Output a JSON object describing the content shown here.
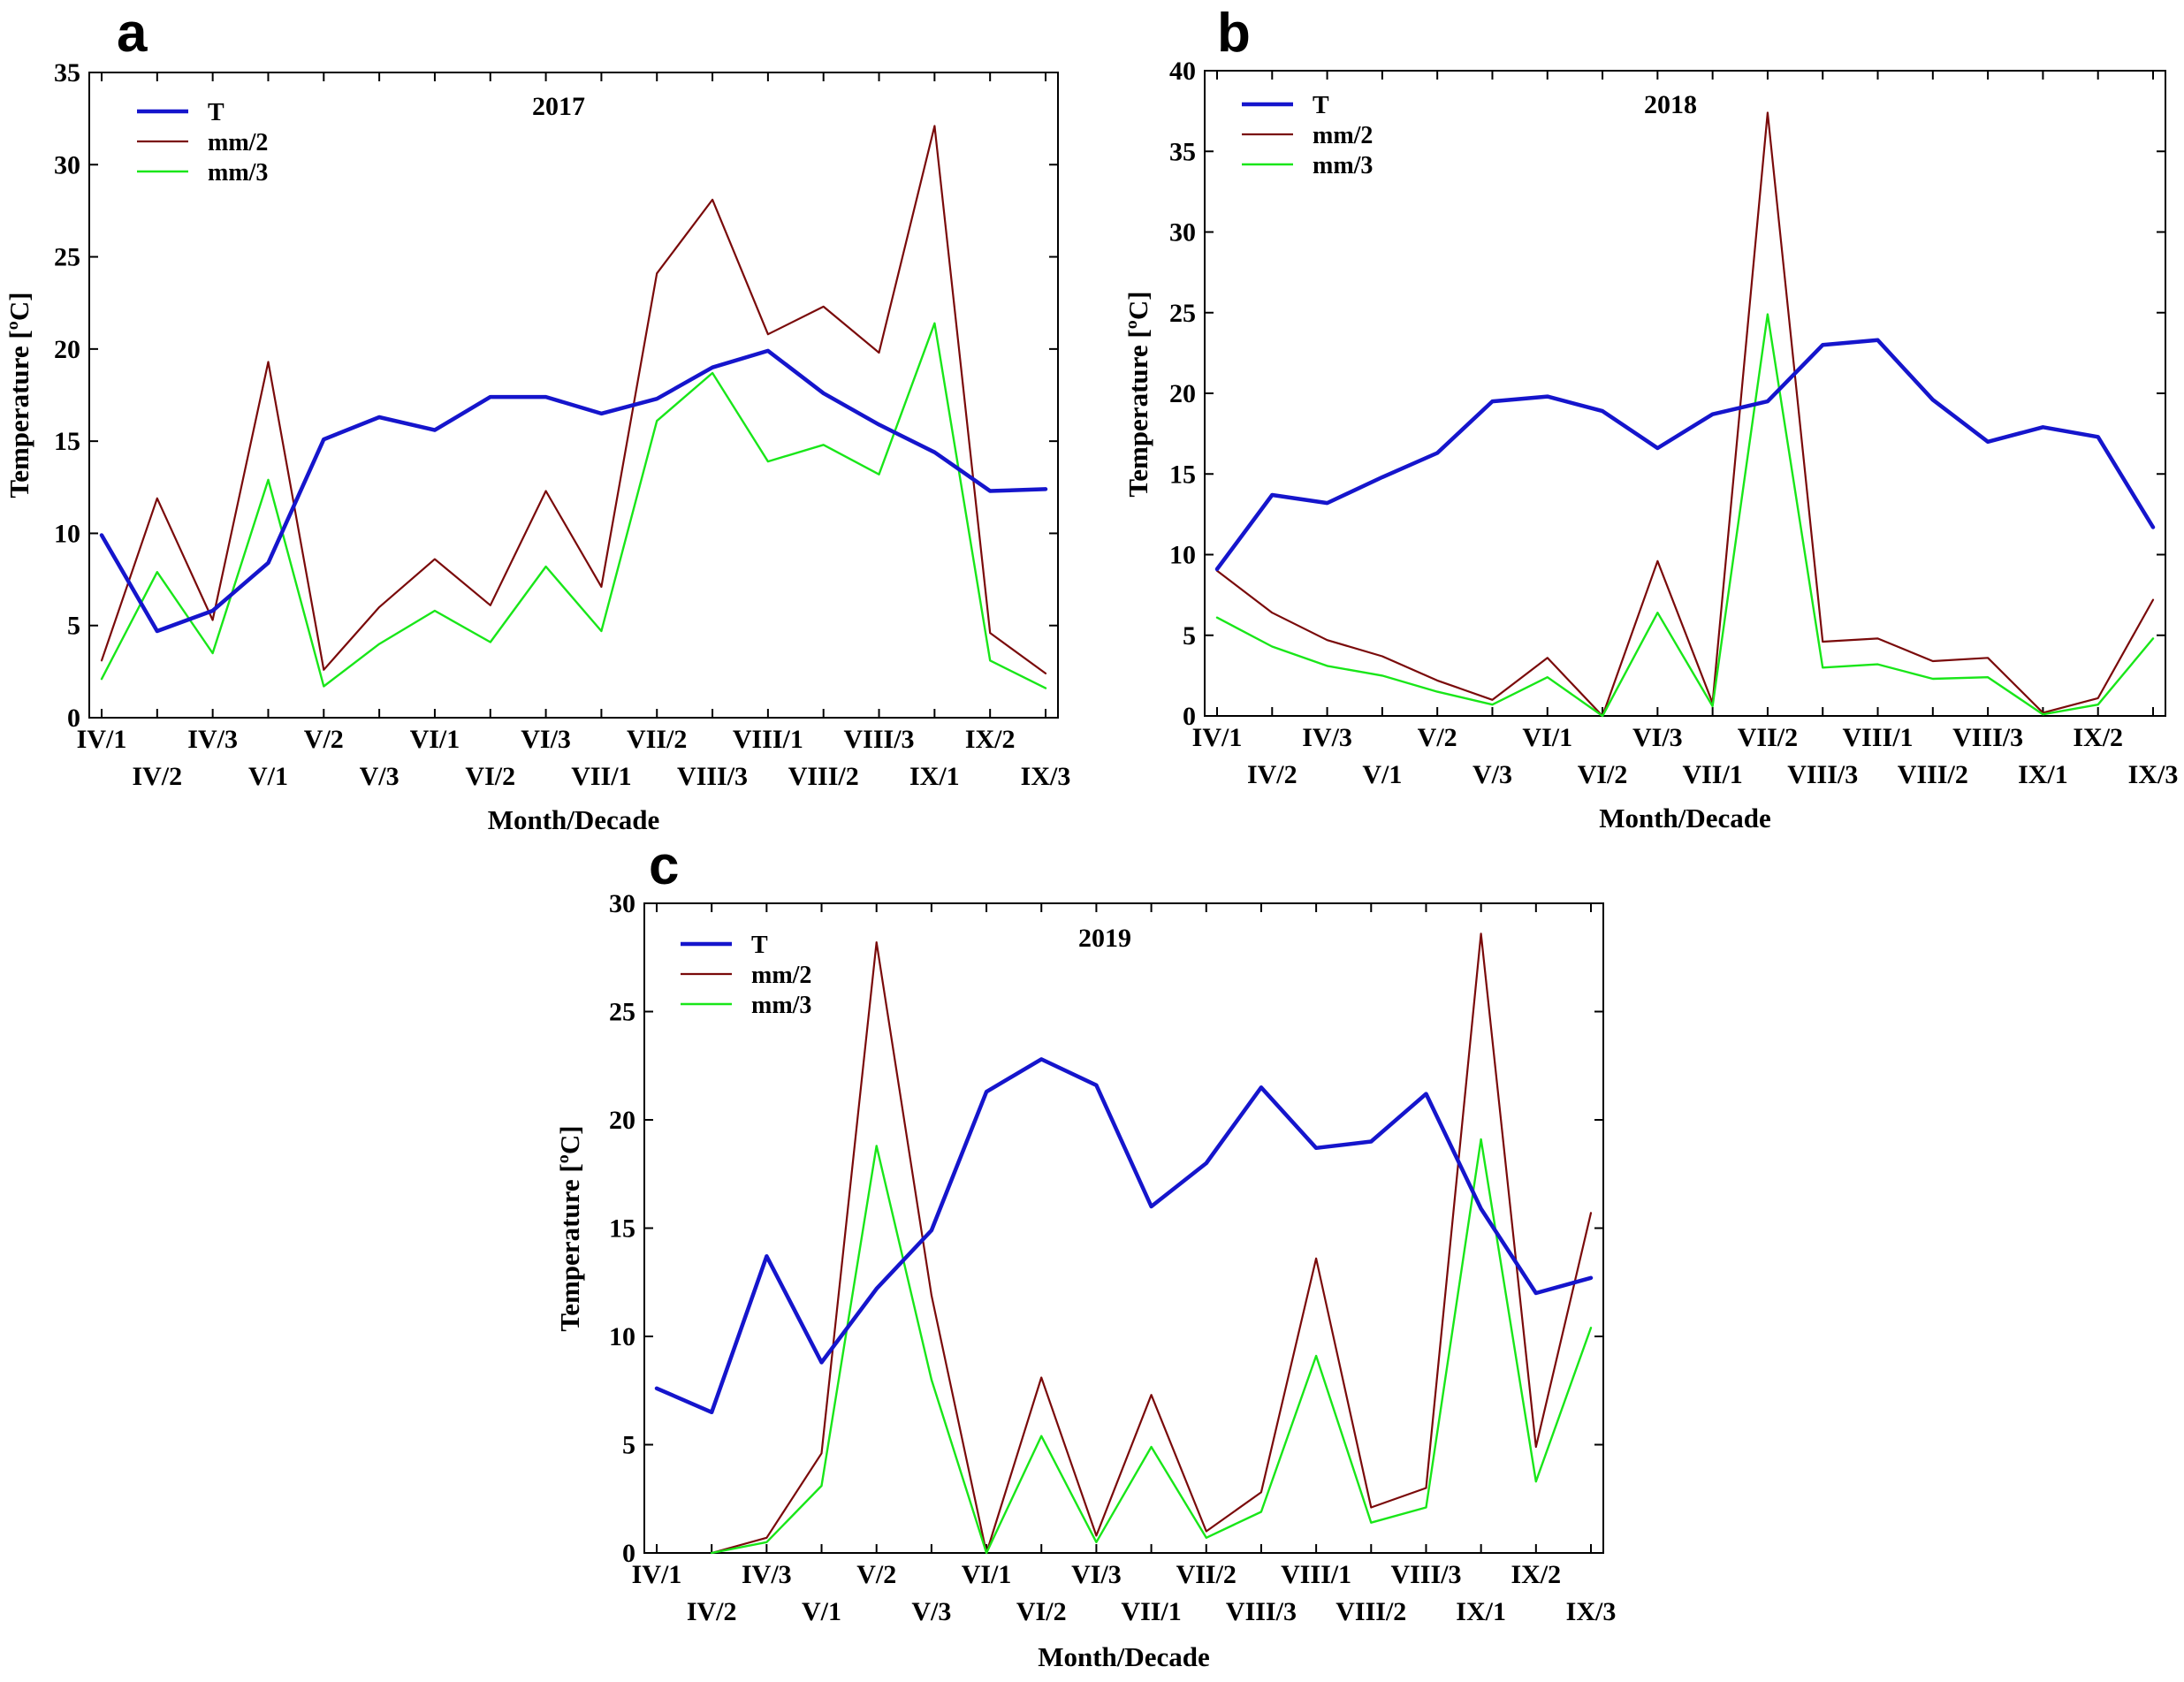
{
  "figure": {
    "description": ""
  },
  "colors": {
    "T": "#1515cc",
    "mm2": "#7a0a0a",
    "mm3": "#19e619"
  },
  "chart_data": [
    {
      "panel": "a",
      "type": "line",
      "title": "2017",
      "xlabel": "Month/Decade",
      "ylabel": "Temperature [ºC]",
      "ylim": [
        0,
        35
      ],
      "yticks": [
        0,
        5,
        10,
        15,
        20,
        25,
        30,
        35
      ],
      "legend": "top-left",
      "categories": [
        "IV/1",
        "IV/2",
        "IV/3",
        "V/1",
        "V/2",
        "V/3",
        "VI/1",
        "VI/2",
        "VI/3",
        "VII/1",
        "VII/2",
        "VIII/3",
        "VIII/1",
        "VIII/2",
        "VIII/3",
        "IX/1",
        "IX/2",
        "IX/3"
      ],
      "series": [
        {
          "name": "T",
          "values": [
            9.9,
            4.7,
            5.8,
            8.4,
            15.1,
            16.3,
            15.6,
            17.4,
            17.4,
            16.5,
            17.3,
            19.0,
            19.9,
            17.6,
            15.9,
            14.4,
            12.3,
            12.4
          ]
        },
        {
          "name": "mm/2",
          "values": [
            3.1,
            11.9,
            5.3,
            19.3,
            2.6,
            6.0,
            8.6,
            6.1,
            12.3,
            7.1,
            24.1,
            28.1,
            20.8,
            22.3,
            19.8,
            32.1,
            4.6,
            2.4
          ]
        },
        {
          "name": "mm/3",
          "values": [
            2.1,
            7.9,
            3.5,
            12.9,
            1.7,
            4.0,
            5.8,
            4.1,
            8.2,
            4.7,
            16.1,
            18.7,
            13.9,
            14.8,
            13.2,
            21.4,
            3.1,
            1.6
          ]
        }
      ]
    },
    {
      "panel": "b",
      "type": "line",
      "title": "2018",
      "xlabel": "Month/Decade",
      "ylabel": "Temperature [ºC]",
      "ylim": [
        0,
        40
      ],
      "yticks": [
        0,
        5,
        10,
        15,
        20,
        25,
        30,
        35,
        40
      ],
      "legend": "top-left",
      "categories": [
        "IV/1",
        "IV/2",
        "IV/3",
        "V/1",
        "V/2",
        "V/3",
        "VI/1",
        "VI/2",
        "VI/3",
        "VII/1",
        "VII/2",
        "VIII/3",
        "VIII/1",
        "VIII/2",
        "VIII/3",
        "IX/1",
        "IX/2",
        "IX/3"
      ],
      "series": [
        {
          "name": "T",
          "values": [
            9.1,
            13.7,
            13.2,
            14.8,
            16.3,
            19.5,
            19.8,
            18.9,
            16.6,
            18.7,
            19.5,
            23.0,
            23.3,
            19.6,
            17.0,
            17.9,
            17.3,
            11.7
          ]
        },
        {
          "name": "mm/2",
          "values": [
            9.0,
            6.4,
            4.7,
            3.7,
            2.2,
            1.0,
            3.6,
            0.0,
            9.6,
            0.8,
            37.4,
            4.6,
            4.8,
            3.4,
            3.6,
            0.2,
            1.1,
            7.2
          ]
        },
        {
          "name": "mm/3",
          "values": [
            6.1,
            4.3,
            3.1,
            2.5,
            1.5,
            0.7,
            2.4,
            0.0,
            6.4,
            0.6,
            24.9,
            3.0,
            3.2,
            2.3,
            2.4,
            0.1,
            0.7,
            4.8
          ]
        }
      ]
    },
    {
      "panel": "c",
      "type": "line",
      "title": "2019",
      "xlabel": "Month/Decade",
      "ylabel": "Temperature [ºC]",
      "ylim": [
        0,
        30
      ],
      "yticks": [
        0,
        5,
        10,
        15,
        20,
        25,
        30
      ],
      "legend": "top-left",
      "categories": [
        "IV/1",
        "IV/2",
        "IV/3",
        "V/1",
        "V/2",
        "V/3",
        "VI/1",
        "VI/2",
        "VI/3",
        "VII/1",
        "VII/2",
        "VIII/3",
        "VIII/1",
        "VIII/2",
        "VIII/3",
        "IX/1",
        "IX/2",
        "IX/3"
      ],
      "series": [
        {
          "name": "T",
          "values": [
            7.6,
            6.5,
            13.7,
            8.8,
            12.2,
            14.9,
            21.3,
            22.8,
            21.6,
            16.0,
            18.0,
            21.5,
            18.7,
            19.0,
            21.2,
            15.9,
            12.0,
            12.7
          ]
        },
        {
          "name": "mm/2",
          "values": [
            null,
            0.0,
            0.7,
            4.6,
            28.2,
            11.9,
            0.0,
            8.1,
            0.8,
            7.3,
            1.0,
            2.8,
            13.6,
            2.1,
            3.0,
            28.6,
            4.9,
            15.7
          ]
        },
        {
          "name": "mm/3",
          "values": [
            null,
            0.0,
            0.5,
            3.1,
            18.8,
            8.0,
            0.0,
            5.4,
            0.5,
            4.9,
            0.7,
            1.9,
            9.1,
            1.4,
            2.1,
            19.1,
            3.3,
            10.4
          ]
        }
      ]
    }
  ]
}
